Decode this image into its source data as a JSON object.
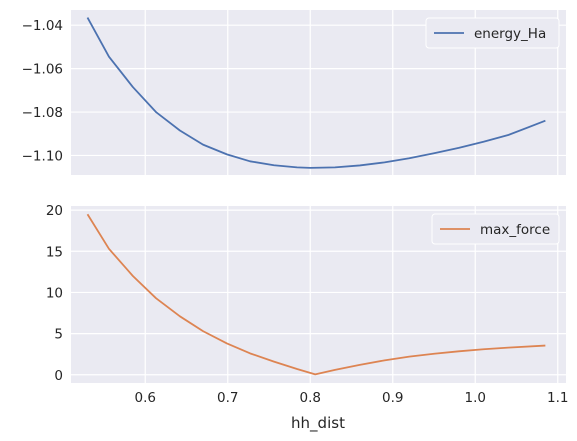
{
  "chart_data": [
    {
      "type": "line",
      "x_values": [
        0.53,
        0.556,
        0.585,
        0.613,
        0.642,
        0.67,
        0.699,
        0.727,
        0.756,
        0.784,
        0.8,
        0.83,
        0.86,
        0.89,
        0.92,
        0.95,
        0.98,
        1.01,
        1.04,
        1.085
      ],
      "series": [
        {
          "name": "energy_Ha",
          "color": "#4c72b0",
          "values": [
            -1.0365,
            -1.0545,
            -1.0685,
            -1.08,
            -1.0885,
            -1.095,
            -1.0995,
            -1.1027,
            -1.1045,
            -1.1055,
            -1.1057,
            -1.1055,
            -1.1046,
            -1.1032,
            -1.1013,
            -1.099,
            -1.0965,
            -1.0937,
            -1.0906,
            -1.084
          ]
        }
      ],
      "xlabel": "",
      "ylabel": "",
      "xlim": [
        0.51,
        1.11
      ],
      "ylim": [
        -1.109,
        -1.033
      ],
      "yticks": [
        -1.04,
        -1.06,
        -1.08,
        -1.1
      ],
      "ytick_labels": [
        "−1.04",
        "−1.06",
        "−1.08",
        "−1.10"
      ],
      "xticks": [
        0.6,
        0.7,
        0.8,
        0.9,
        1.0,
        1.1
      ],
      "xtick_labels": [],
      "grid": true,
      "legend": "top-right"
    },
    {
      "type": "line",
      "x_values": [
        0.53,
        0.556,
        0.585,
        0.613,
        0.642,
        0.67,
        0.699,
        0.727,
        0.756,
        0.784,
        0.806,
        0.83,
        0.86,
        0.89,
        0.92,
        0.95,
        0.98,
        1.01,
        1.04,
        1.085
      ],
      "series": [
        {
          "name": "max_force",
          "color": "#dd8452",
          "values": [
            19.5,
            15.3,
            12.0,
            9.3,
            7.1,
            5.3,
            3.8,
            2.6,
            1.6,
            0.7,
            0.05,
            0.6,
            1.2,
            1.75,
            2.2,
            2.55,
            2.85,
            3.1,
            3.3,
            3.55
          ]
        }
      ],
      "xlabel": "hh_dist",
      "ylabel": "",
      "xlim": [
        0.51,
        1.11
      ],
      "ylim": [
        -1.0,
        20.5
      ],
      "yticks": [
        0,
        5,
        10,
        15,
        20
      ],
      "ytick_labels": [
        "0",
        "5",
        "10",
        "15",
        "20"
      ],
      "xticks": [
        0.6,
        0.7,
        0.8,
        0.9,
        1.0,
        1.1
      ],
      "xtick_labels": [
        "0.6",
        "0.7",
        "0.8",
        "0.9",
        "1.0",
        "1.1"
      ],
      "grid": true,
      "legend": "top-right"
    }
  ]
}
